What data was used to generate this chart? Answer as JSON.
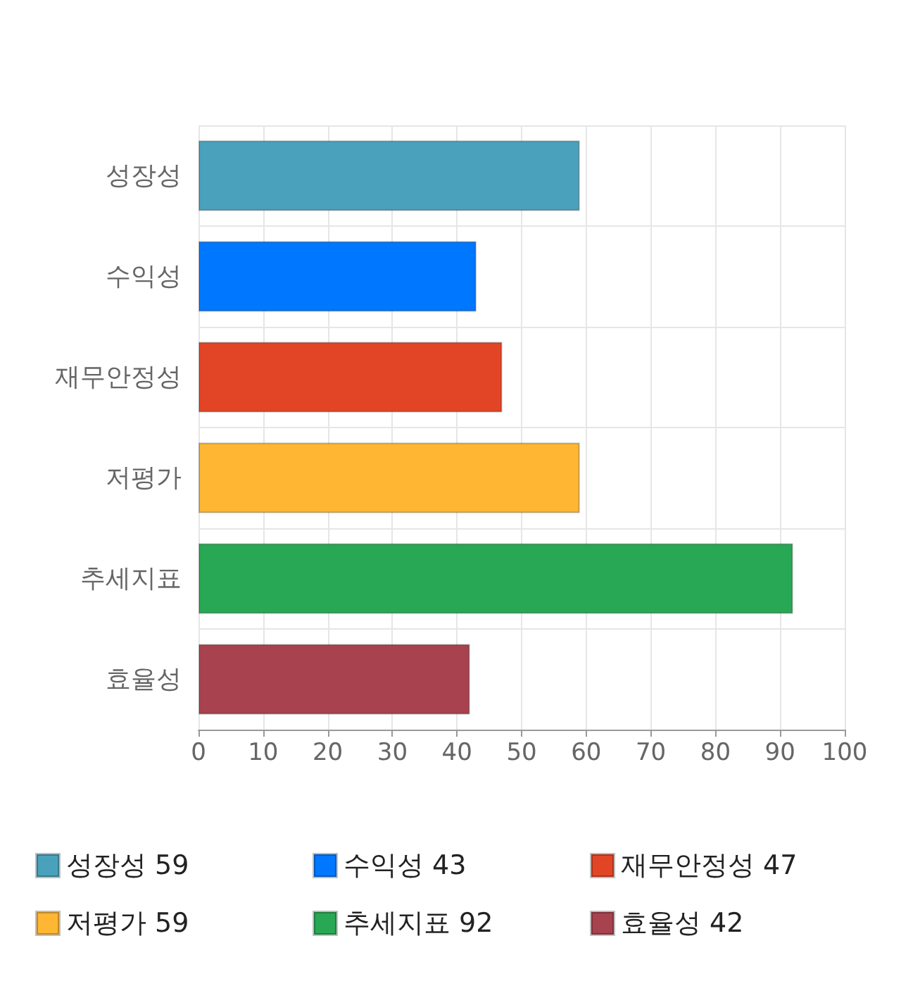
{
  "chart_data": {
    "type": "bar",
    "orientation": "horizontal",
    "stacked": true,
    "categories": [
      "성장성",
      "수익성",
      "재무안정성",
      "저평가",
      "추세지표",
      "효율성"
    ],
    "series": [
      {
        "name": "성장성 59",
        "color": "#4aa1bb",
        "values": [
          59,
          null,
          null,
          null,
          null,
          null
        ]
      },
      {
        "name": "수익성 43",
        "color": "#0077ff",
        "values": [
          null,
          43,
          null,
          null,
          null,
          null
        ]
      },
      {
        "name": "재무안정성 47",
        "color": "#e24526",
        "values": [
          null,
          null,
          47,
          null,
          null,
          null
        ]
      },
      {
        "name": "저평가 59",
        "color": "#ffb733",
        "values": [
          null,
          null,
          null,
          59,
          null,
          null
        ]
      },
      {
        "name": "추세지표 92",
        "color": "#28a854",
        "values": [
          null,
          null,
          null,
          null,
          92,
          null
        ]
      },
      {
        "name": "효율성 42",
        "color": "#a8424f",
        "values": [
          null,
          null,
          null,
          null,
          null,
          42
        ]
      }
    ],
    "xlim": [
      0,
      100
    ],
    "xticks": [
      0,
      10,
      20,
      30,
      40,
      50,
      60,
      70,
      80,
      90,
      100
    ],
    "grid": true,
    "legend": "bottom"
  }
}
